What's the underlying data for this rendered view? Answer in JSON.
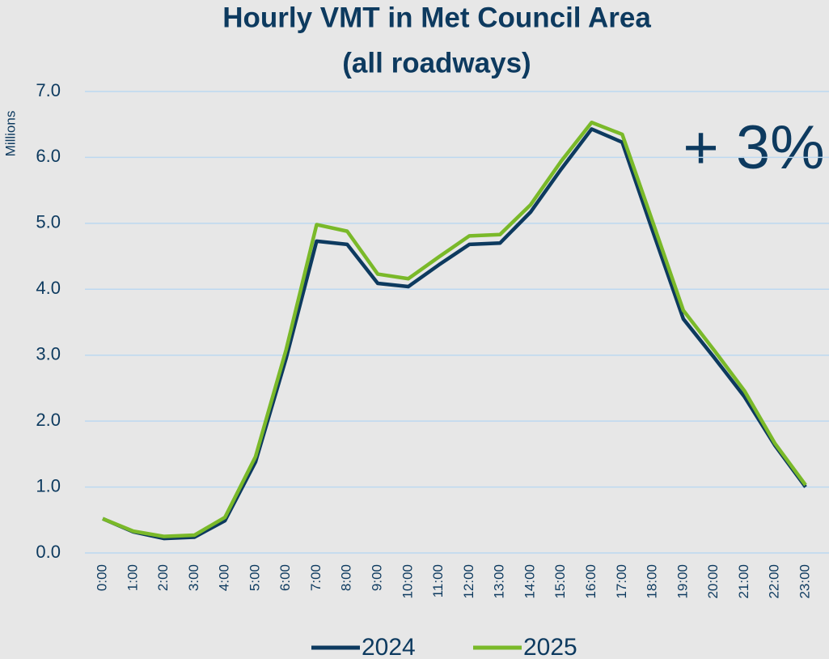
{
  "chart_data": {
    "type": "line",
    "title": "Hourly VMT in Met Council Area",
    "subtitle": "(all roadways)",
    "y_axis_label": "Millions",
    "annotation": "+ 3%",
    "categories": [
      "0:00",
      "1:00",
      "2:00",
      "3:00",
      "4:00",
      "5:00",
      "6:00",
      "7:00",
      "8:00",
      "9:00",
      "10:00",
      "11:00",
      "12:00",
      "13:00",
      "14:00",
      "15:00",
      "16:00",
      "17:00",
      "18:00",
      "19:00",
      "20:00",
      "21:00",
      "22:00",
      "23:00"
    ],
    "series": [
      {
        "name": "2024",
        "color": "#0d3a5f",
        "values": [
          0.52,
          0.32,
          0.22,
          0.24,
          0.49,
          1.38,
          2.95,
          4.73,
          4.68,
          4.09,
          4.04,
          4.37,
          4.68,
          4.7,
          5.17,
          5.82,
          6.43,
          6.23,
          4.88,
          3.55,
          2.97,
          2.37,
          1.63,
          1.0
        ]
      },
      {
        "name": "2025",
        "color": "#7ab929",
        "values": [
          0.52,
          0.33,
          0.25,
          0.27,
          0.54,
          1.46,
          3.08,
          4.98,
          4.88,
          4.23,
          4.16,
          4.49,
          4.81,
          4.83,
          5.28,
          5.94,
          6.53,
          6.35,
          5.02,
          3.68,
          3.08,
          2.46,
          1.66,
          1.03
        ]
      }
    ],
    "ylim": [
      0,
      7
    ],
    "yticks": [
      {
        "value": 0,
        "label": "0.0"
      },
      {
        "value": 1,
        "label": "1.0"
      },
      {
        "value": 2,
        "label": "2.0"
      },
      {
        "value": 3,
        "label": "3.0"
      },
      {
        "value": 4,
        "label": "4.0"
      },
      {
        "value": 5,
        "label": "5.0"
      },
      {
        "value": 6,
        "label": "6.0"
      },
      {
        "value": 7,
        "label": "7.0"
      }
    ],
    "grid": true,
    "legend": "bottom"
  }
}
